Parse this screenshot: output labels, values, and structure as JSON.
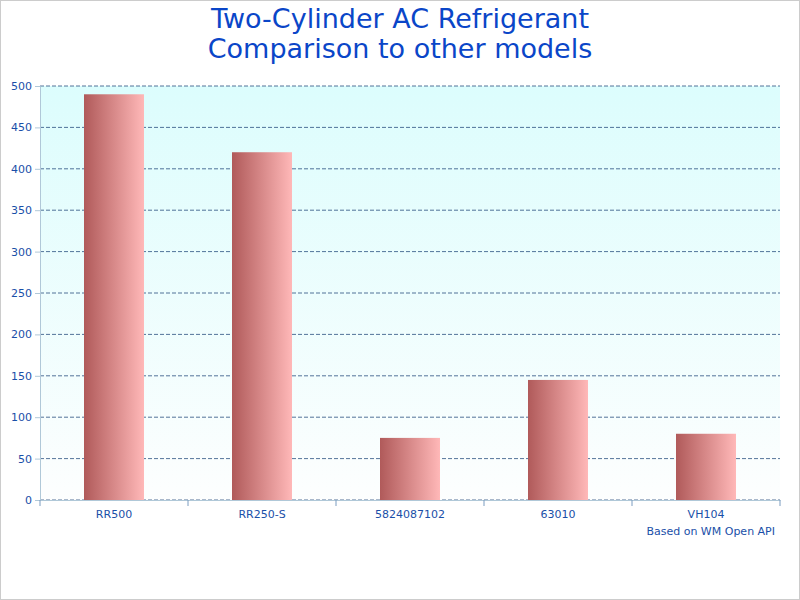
{
  "chart_data": {
    "type": "bar",
    "title": "Two-Cylinder AC Refrigerant\nComparison to other models",
    "annotation": "Based on WM Open API",
    "categories": [
      "RR500",
      "RR250-S",
      "5824087102",
      "63010",
      "VH104"
    ],
    "values": [
      490,
      420,
      75,
      145,
      80
    ],
    "color": "#b05a5a",
    "ylim": [
      0,
      500
    ],
    "yticks": [
      0,
      50,
      100,
      150,
      200,
      250,
      300,
      350,
      400,
      450,
      500
    ],
    "grid": true
  }
}
